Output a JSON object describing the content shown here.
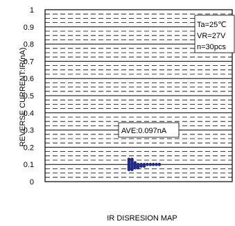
{
  "chart_data": {
    "type": "scatter",
    "title": "",
    "xlabel": "IR DISRESION MAP",
    "ylabel": "REVERSE CURRENT:IR(nA)",
    "ylim": [
      0,
      1
    ],
    "yticks": [
      "0",
      "0.1",
      "0.2",
      "0.3",
      "0.4",
      "0.5",
      "0.6",
      "0.7",
      "0.8",
      "0.9",
      "1"
    ],
    "grid": true,
    "conditions": [
      "Ta=25℃",
      "VR=27V",
      "n=30pcs"
    ],
    "average_label": "AVE:0.097nA",
    "series": [
      {
        "points": [
          {
            "x": 1,
            "y": 0.13
          },
          {
            "x": 1,
            "y": 0.12
          },
          {
            "x": 1,
            "y": 0.11
          },
          {
            "x": 1,
            "y": 0.1
          },
          {
            "x": 1,
            "y": 0.09
          },
          {
            "x": 1,
            "y": 0.08
          },
          {
            "x": 1,
            "y": 0.07
          },
          {
            "x": 2,
            "y": 0.13
          },
          {
            "x": 2,
            "y": 0.12
          },
          {
            "x": 2,
            "y": 0.11
          },
          {
            "x": 2,
            "y": 0.1
          },
          {
            "x": 2,
            "y": 0.09
          },
          {
            "x": 2,
            "y": 0.08
          },
          {
            "x": 2,
            "y": 0.07
          },
          {
            "x": 3,
            "y": 0.11
          },
          {
            "x": 3,
            "y": 0.1
          },
          {
            "x": 3,
            "y": 0.09
          },
          {
            "x": 3,
            "y": 0.08
          },
          {
            "x": 4,
            "y": 0.1
          },
          {
            "x": 4,
            "y": 0.09
          },
          {
            "x": 4,
            "y": 0.08
          },
          {
            "x": 5,
            "y": 0.1
          },
          {
            "x": 5,
            "y": 0.09
          },
          {
            "x": 6,
            "y": 0.1
          },
          {
            "x": 6,
            "y": 0.09
          },
          {
            "x": 7,
            "y": 0.1
          },
          {
            "x": 8,
            "y": 0.1
          },
          {
            "x": 9,
            "y": 0.1
          },
          {
            "x": 10,
            "y": 0.1
          },
          {
            "x": 11,
            "y": 0.1
          }
        ]
      }
    ],
    "point_color": "#1f2a8a"
  }
}
